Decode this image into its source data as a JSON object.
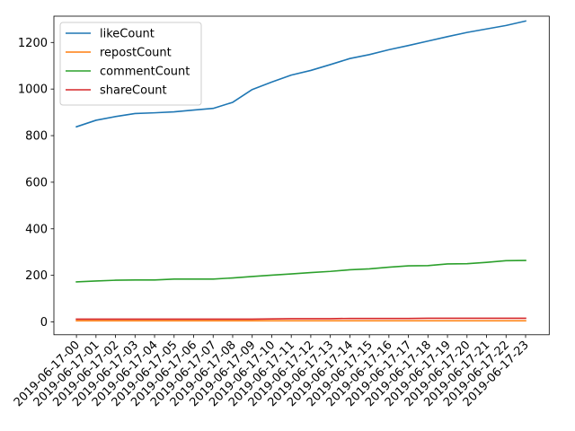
{
  "chart_data": {
    "type": "line",
    "title": "",
    "xlabel": "",
    "ylabel": "",
    "categories": [
      "2019-06-17-00",
      "2019-06-17-01",
      "2019-06-17-02",
      "2019-06-17-03",
      "2019-06-17-04",
      "2019-06-17-05",
      "2019-06-17-06",
      "2019-06-17-07",
      "2019-06-17-08",
      "2019-06-17-09",
      "2019-06-17-10",
      "2019-06-17-11",
      "2019-06-17-12",
      "2019-06-17-13",
      "2019-06-17-14",
      "2019-06-17-15",
      "2019-06-17-16",
      "2019-06-17-17",
      "2019-06-17-18",
      "2019-06-17-19",
      "2019-06-17-20",
      "2019-06-17-21",
      "2019-06-17-22",
      "2019-06-17-23"
    ],
    "ylim": [
      -55,
      1313
    ],
    "yticks": [
      0,
      200,
      400,
      600,
      800,
      1000,
      1200
    ],
    "grid": false,
    "legend_position": "top-left",
    "series": [
      {
        "name": "likeCount",
        "color": "#1f77b4",
        "values": [
          838,
          866,
          882,
          895,
          898,
          902,
          910,
          917,
          943,
          998,
          1030,
          1060,
          1080,
          1105,
          1131,
          1148,
          1169,
          1187,
          1206,
          1225,
          1243,
          1258,
          1273,
          1292
        ]
      },
      {
        "name": "repostCount",
        "color": "#ff7f0e",
        "values": [
          5,
          5,
          5,
          5,
          5,
          5,
          5,
          5,
          5,
          5,
          5,
          5,
          5,
          5,
          5,
          5,
          5,
          5,
          5,
          5,
          5,
          5,
          5,
          5
        ]
      },
      {
        "name": "commentCount",
        "color": "#2ca02c",
        "values": [
          172,
          176,
          179,
          180,
          180,
          184,
          184,
          184,
          189,
          195,
          201,
          206,
          212,
          217,
          224,
          228,
          235,
          241,
          242,
          249,
          250,
          256,
          263,
          264
        ]
      },
      {
        "name": "shareCount",
        "color": "#d62728",
        "values": [
          12,
          12,
          12,
          12,
          12,
          12,
          12,
          12,
          12,
          12,
          13,
          14,
          14,
          14,
          15,
          15,
          15,
          15,
          16,
          16,
          16,
          16,
          16,
          16
        ]
      }
    ]
  }
}
